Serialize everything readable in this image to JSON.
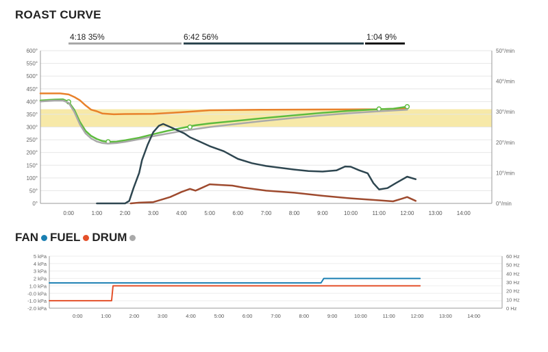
{
  "page": {
    "title": "ROAST CURVE"
  },
  "phases": [
    {
      "label": "4:18 35%",
      "color": "#a8a8a8"
    },
    {
      "label": "6:42 56%",
      "color": "#2e4650"
    },
    {
      "label": "1:04 9%",
      "color": "#111111"
    }
  ],
  "legend": {
    "items": [
      {
        "label": "FAN",
        "color": "#1a7fb2"
      },
      {
        "label": "FUEL",
        "color": "#e4502a"
      },
      {
        "label": "DRUM",
        "color": "#a9a9a9"
      }
    ]
  },
  "chart_data": [
    {
      "type": "line",
      "title": "ROAST CURVE",
      "x_ticks": [
        "0:00",
        "1:00",
        "2:00",
        "3:00",
        "4:00",
        "5:00",
        "6:00",
        "7:00",
        "8:00",
        "9:00",
        "10:00",
        "11:00",
        "12:00",
        "13:00",
        "14:00"
      ],
      "xlim": [
        -1,
        15
      ],
      "ylim_left": [
        0,
        600
      ],
      "ylim_right": [
        0,
        50
      ],
      "y_ticks_left": [
        "0°",
        "50°",
        "100°",
        "150°",
        "200°",
        "250°",
        "300°",
        "350°",
        "400°",
        "450°",
        "500°",
        "550°",
        "600°"
      ],
      "y_ticks_right": [
        "0°/min",
        "10°/min",
        "20°/min",
        "30°/min",
        "40°/min",
        "50°/min"
      ],
      "band": {
        "from": 300,
        "to": 370,
        "color": "#f7e9a8"
      },
      "series": [
        {
          "name": "orange",
          "axis": "left",
          "color": "#e8812a",
          "points": [
            [
              -1,
              432
            ],
            [
              -0.3,
              432
            ],
            [
              0,
              428
            ],
            [
              0.2,
              418
            ],
            [
              0.4,
              405
            ],
            [
              0.6,
              385
            ],
            [
              0.8,
              368
            ],
            [
              1,
              362
            ],
            [
              1.2,
              353
            ],
            [
              1.6,
              350
            ],
            [
              2,
              351
            ],
            [
              3,
              352
            ],
            [
              4,
              358
            ],
            [
              5,
              366
            ],
            [
              7,
              368
            ],
            [
              9,
              369
            ],
            [
              11,
              370
            ],
            [
              11.8,
              373
            ],
            [
              12,
              372
            ]
          ]
        },
        {
          "name": "green",
          "axis": "left",
          "color": "#5dbb3e",
          "points": [
            [
              -1,
              404
            ],
            [
              -0.5,
              408
            ],
            [
              -0.2,
              409
            ],
            [
              0,
              399
            ],
            [
              0.2,
              368
            ],
            [
              0.4,
              320
            ],
            [
              0.6,
              285
            ],
            [
              0.8,
              265
            ],
            [
              1,
              253
            ],
            [
              1.2,
              245
            ],
            [
              1.4,
              242
            ],
            [
              1.7,
              243
            ],
            [
              2,
              248
            ],
            [
              2.5,
              258
            ],
            [
              3,
              272
            ],
            [
              3.5,
              285
            ],
            [
              4,
              296
            ],
            [
              4.5,
              307
            ],
            [
              5,
              314
            ],
            [
              6,
              325
            ],
            [
              7,
              336
            ],
            [
              8,
              346
            ],
            [
              9,
              356
            ],
            [
              10,
              364
            ],
            [
              11,
              370
            ],
            [
              11.5,
              372
            ],
            [
              12,
              380
            ]
          ],
          "markers": [
            [
              0,
              399
            ],
            [
              1.4,
              242
            ],
            [
              4.3,
              300
            ],
            [
              11,
              371
            ],
            [
              12,
              380
            ]
          ]
        },
        {
          "name": "gray",
          "axis": "left",
          "color": "#a9a9a9",
          "points": [
            [
              -1,
              400
            ],
            [
              -0.5,
              404
            ],
            [
              -0.2,
              404
            ],
            [
              0,
              395
            ],
            [
              0.2,
              360
            ],
            [
              0.4,
              310
            ],
            [
              0.6,
              275
            ],
            [
              0.8,
              255
            ],
            [
              1,
              243
            ],
            [
              1.2,
              237
            ],
            [
              1.4,
              235
            ],
            [
              1.7,
              237
            ],
            [
              2,
              242
            ],
            [
              2.5,
              252
            ],
            [
              3,
              264
            ],
            [
              3.5,
              274
            ],
            [
              4,
              284
            ],
            [
              5,
              300
            ],
            [
              6,
              313
            ],
            [
              7,
              325
            ],
            [
              8,
              336
            ],
            [
              9,
              346
            ],
            [
              10,
              355
            ],
            [
              11,
              362
            ],
            [
              12,
              368
            ]
          ]
        },
        {
          "name": "dark",
          "axis": "left",
          "color": "#2e4650",
          "points": [
            [
              1,
              0
            ],
            [
              2,
              0
            ],
            [
              2.15,
              10
            ],
            [
              2.3,
              60
            ],
            [
              2.5,
              120
            ],
            [
              2.6,
              170
            ],
            [
              2.8,
              230
            ],
            [
              3,
              280
            ],
            [
              3.2,
              305
            ],
            [
              3.35,
              312
            ],
            [
              3.5,
              305
            ],
            [
              3.8,
              290
            ],
            [
              4.1,
              275
            ],
            [
              4.3,
              260
            ],
            [
              4.6,
              245
            ],
            [
              5,
              225
            ],
            [
              5.5,
              205
            ],
            [
              6,
              175
            ],
            [
              6.5,
              158
            ],
            [
              7,
              147
            ],
            [
              7.5,
              140
            ],
            [
              8,
              133
            ],
            [
              8.5,
              127
            ],
            [
              9,
              125
            ],
            [
              9.5,
              130
            ],
            [
              9.8,
              145
            ],
            [
              10,
              144
            ],
            [
              10.3,
              130
            ],
            [
              10.6,
              118
            ],
            [
              10.8,
              80
            ],
            [
              11,
              55
            ],
            [
              11.3,
              60
            ],
            [
              11.6,
              80
            ],
            [
              12,
              105
            ],
            [
              12.3,
              95
            ]
          ]
        },
        {
          "name": "brown",
          "axis": "left",
          "color": "#9e4a2e",
          "points": [
            [
              2.2,
              0
            ],
            [
              2.5,
              3
            ],
            [
              3,
              5
            ],
            [
              3.3,
              15
            ],
            [
              3.6,
              25
            ],
            [
              4,
              45
            ],
            [
              4.3,
              57
            ],
            [
              4.5,
              50
            ],
            [
              4.7,
              60
            ],
            [
              5,
              75
            ],
            [
              5.3,
              73
            ],
            [
              5.8,
              70
            ],
            [
              6.2,
              62
            ],
            [
              7,
              50
            ],
            [
              8,
              42
            ],
            [
              9,
              30
            ],
            [
              10,
              20
            ],
            [
              11,
              12
            ],
            [
              11.5,
              8
            ],
            [
              11.8,
              18
            ],
            [
              12,
              25
            ],
            [
              12.3,
              10
            ]
          ]
        }
      ]
    },
    {
      "type": "line",
      "title": "FAN FUEL DRUM",
      "x_ticks": [
        "0:00",
        "1:00",
        "2:00",
        "3:00",
        "4:00",
        "5:00",
        "6:00",
        "7:00",
        "8:00",
        "9:00",
        "10:00",
        "11:00",
        "12:00",
        "13:00",
        "14:00"
      ],
      "xlim": [
        -1,
        15
      ],
      "ylim_left": [
        -2,
        5
      ],
      "ylim_right": [
        0,
        60
      ],
      "y_ticks_left": [
        "-2.0 kPa",
        "-1.0 kPa",
        "-0.0 kPa",
        "1.0 kPa",
        "2 kPa",
        "3 kPa",
        "4 kPa",
        "5 kPa"
      ],
      "y_ticks_right": [
        "0 Hz",
        "10 Hz",
        "20 Hz",
        "30 Hz",
        "40 Hz",
        "50 Hz",
        "60 Hz"
      ],
      "series": [
        {
          "name": "FAN",
          "axis": "left",
          "color": "#1a7fb2",
          "points": [
            [
              -1,
              1.4
            ],
            [
              8.6,
              1.4
            ],
            [
              8.7,
              2.0
            ],
            [
              12.1,
              2.0
            ]
          ]
        },
        {
          "name": "FUEL",
          "axis": "left",
          "color": "#e4502a",
          "points": [
            [
              -1,
              -1.0
            ],
            [
              1.2,
              -1.0
            ],
            [
              1.25,
              1.0
            ],
            [
              12.1,
              1.0
            ]
          ]
        }
      ]
    }
  ]
}
